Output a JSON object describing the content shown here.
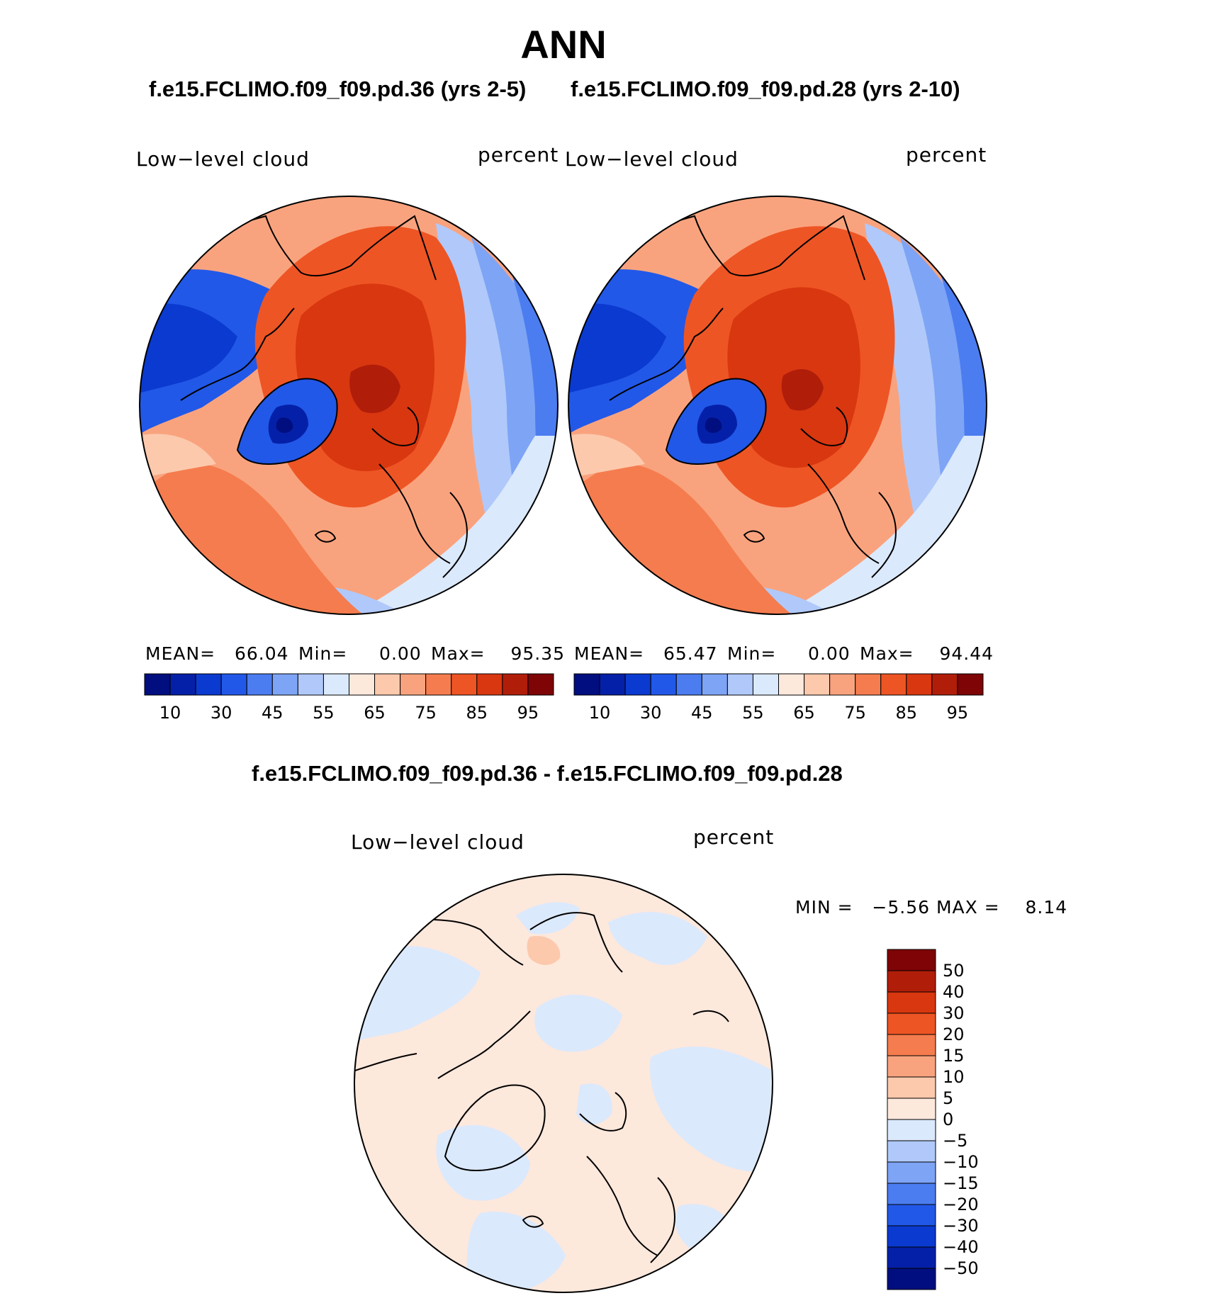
{
  "page": {
    "title": "ANN",
    "case_left": "f.e15.FCLIMO.f09_f09.pd.36 (yrs 2-5)",
    "case_right": "f.e15.FCLIMO.f09_f09.pd.28 (yrs 2-10)",
    "diff_title": "f.e15.FCLIMO.f09_f09.pd.36 - f.e15.FCLIMO.f09_f09.pd.28"
  },
  "panels": [
    {
      "variable": "Low−level cloud",
      "units": "percent",
      "mean_label": "MEAN=",
      "mean_value": "66.04",
      "min_label": "Min=",
      "min_value": "0.00",
      "max_label": "Max=",
      "max_value": "95.35"
    },
    {
      "variable": "Low−level cloud",
      "units": "percent",
      "mean_label": "MEAN=",
      "mean_value": "65.47",
      "min_label": "Min=",
      "min_value": "0.00",
      "max_label": "Max=",
      "max_value": "94.44"
    }
  ],
  "diff_panel": {
    "variable": "Low−level cloud",
    "units": "percent",
    "min_label": "MIN =",
    "min_value": "−5.56",
    "max_label": "MAX =",
    "max_value": "8.14"
  },
  "colorbar_abs": {
    "tick_labels": [
      "10",
      "30",
      "45",
      "55",
      "65",
      "75",
      "85",
      "95"
    ],
    "colors": [
      "#000e80",
      "#0520a8",
      "#0b3ad0",
      "#2158e8",
      "#4b7df0",
      "#7ea4f5",
      "#b0c9fa",
      "#dbe9fc",
      "#fde8dc",
      "#fcc9ad",
      "#f9a37e",
      "#f57c4e",
      "#ee5524",
      "#d93710",
      "#b01e0a",
      "#7e0406"
    ]
  },
  "colorbar_diff": {
    "tick_labels": [
      "50",
      "40",
      "30",
      "20",
      "15",
      "10",
      "5",
      "0",
      "−5",
      "−10",
      "−15",
      "−20",
      "−30",
      "−40",
      "−50"
    ],
    "colors": [
      "#7e0406",
      "#b01e0a",
      "#d93710",
      "#ee5524",
      "#f57c4e",
      "#f9a37e",
      "#fcc9ad",
      "#fde8dc",
      "#dbe9fc",
      "#b0c9fa",
      "#7ea4f5",
      "#4b7df0",
      "#2158e8",
      "#0b3ad0",
      "#0520a8",
      "#000e80"
    ]
  }
}
